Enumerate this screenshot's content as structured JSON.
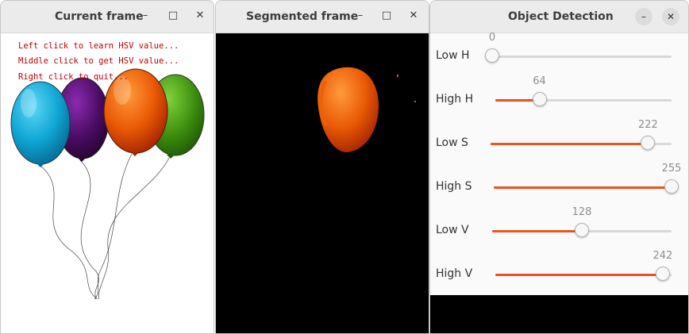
{
  "windows": {
    "current": {
      "title": "Current frame",
      "hints": [
        "Left click to learn HSV value...",
        "Middle click to get HSV value...",
        "Right click to quit..."
      ]
    },
    "segmented": {
      "title": "Segmented frame"
    },
    "detection": {
      "title": "Object Detection",
      "sliders": [
        {
          "label": "Low H",
          "value": "0",
          "fraction": 0.0
        },
        {
          "label": "High H",
          "value": "64",
          "fraction": 0.25
        },
        {
          "label": "Low S",
          "value": "222",
          "fraction": 0.87
        },
        {
          "label": "High S",
          "value": "255",
          "fraction": 1.0
        },
        {
          "label": "Low V",
          "value": "128",
          "fraction": 0.5
        },
        {
          "label": "High V",
          "value": "242",
          "fraction": 0.95
        }
      ]
    }
  },
  "icons": {
    "minimize": "minimize-icon",
    "maximize": "maximize-icon",
    "close": "close-icon"
  },
  "colors": {
    "accent": "#e95420",
    "hint_text": "#c00000"
  }
}
